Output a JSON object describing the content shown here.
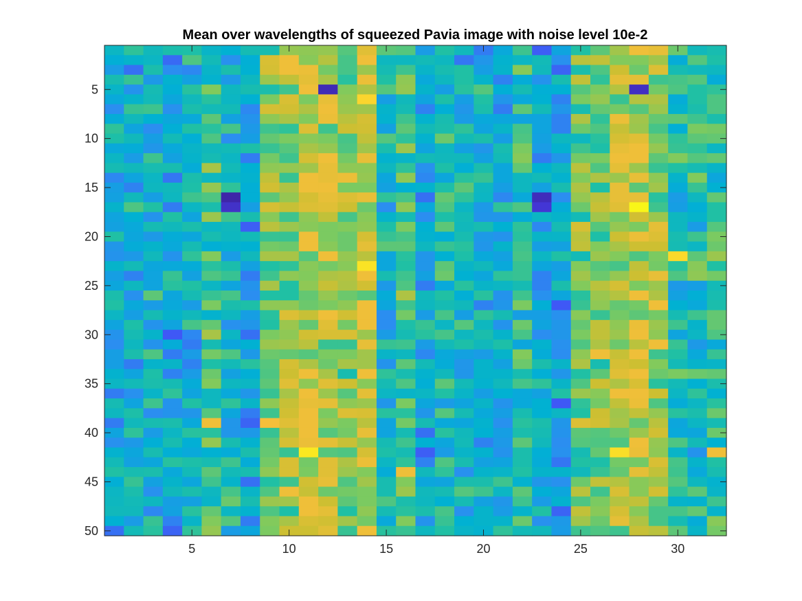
{
  "chart_data": {
    "type": "heatmap",
    "title": "Mean over wavelengths of squeezed Pavia image with noise level 10e-2",
    "xlabel": "",
    "ylabel": "",
    "ncols": 32,
    "nrows": 50,
    "xlim": [
      0.5,
      32.5
    ],
    "ylim": [
      0.5,
      50.5
    ],
    "y_reversed": true,
    "x_ticks": [
      5,
      10,
      15,
      20,
      25,
      30
    ],
    "y_ticks": [
      5,
      10,
      15,
      20,
      25,
      30,
      35,
      40,
      45,
      50
    ],
    "colormap": "parula",
    "colormap_stops": [
      "#3e26a8",
      "#4743f8",
      "#2b8ef0",
      "#00b0d4",
      "#20c0a4",
      "#7fca5e",
      "#cdbf32",
      "#fcbf3c",
      "#f9fb15"
    ],
    "color_range": [
      0,
      1
    ],
    "grid": false,
    "column_profile": [
      0.38,
      0.4,
      0.4,
      0.34,
      0.38,
      0.52,
      0.42,
      0.36,
      0.62,
      0.66,
      0.74,
      0.72,
      0.66,
      0.74,
      0.42,
      0.52,
      0.36,
      0.44,
      0.4,
      0.38,
      0.36,
      0.5,
      0.36,
      0.34,
      0.62,
      0.64,
      0.7,
      0.72,
      0.68,
      0.46,
      0.46,
      0.5
    ],
    "row_values": [],
    "notable_cells": [
      {
        "row": 5,
        "col": 12,
        "value": 0.02
      },
      {
        "row": 5,
        "col": 28,
        "value": 0.04
      },
      {
        "row": 6,
        "col": 14,
        "value": 0.92
      },
      {
        "row": 16,
        "col": 7,
        "value": 0.0
      },
      {
        "row": 16,
        "col": 23,
        "value": 0.03
      },
      {
        "row": 17,
        "col": 7,
        "value": 0.05
      },
      {
        "row": 17,
        "col": 23,
        "value": 0.07
      },
      {
        "row": 17,
        "col": 28,
        "value": 0.99
      },
      {
        "row": 22,
        "col": 30,
        "value": 0.93
      },
      {
        "row": 23,
        "col": 14,
        "value": 0.95
      },
      {
        "row": 39,
        "col": 6,
        "value": 0.84
      },
      {
        "row": 39,
        "col": 9,
        "value": 0.86
      },
      {
        "row": 42,
        "col": 11,
        "value": 0.96
      },
      {
        "row": 42,
        "col": 27,
        "value": 0.94
      },
      {
        "row": 42,
        "col": 32,
        "value": 0.84
      },
      {
        "row": 44,
        "col": 16,
        "value": 0.84
      }
    ]
  }
}
